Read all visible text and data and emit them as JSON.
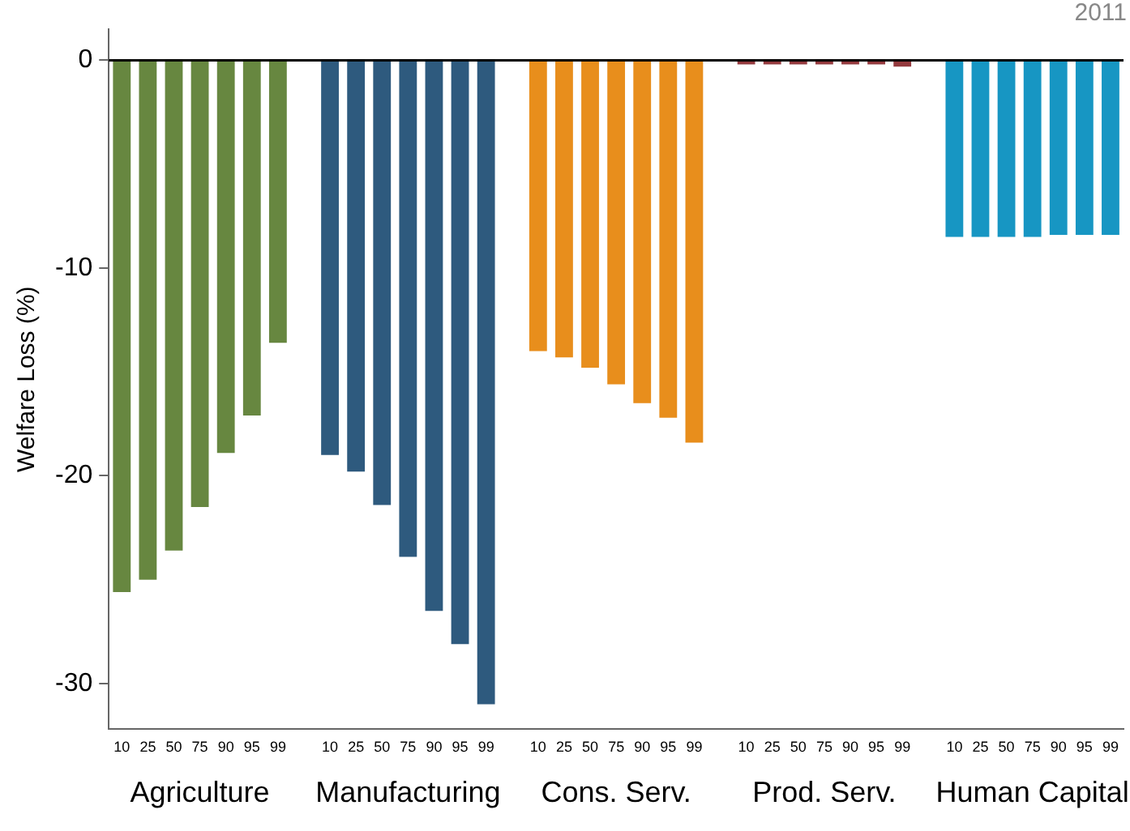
{
  "chart_data": {
    "type": "bar",
    "title": "2011",
    "ylabel": "Welfare Loss (%)",
    "categories": [
      "10",
      "25",
      "50",
      "75",
      "90",
      "95",
      "99",
      null,
      "10",
      "25",
      "50",
      "75",
      "90",
      "95",
      "99",
      null,
      "10",
      "25",
      "50",
      "75",
      "90",
      "95",
      "99",
      null,
      "10",
      "25",
      "50",
      "75",
      "90",
      "95",
      "99",
      null,
      "10",
      "25",
      "50",
      "75",
      "90",
      "95",
      "99"
    ],
    "series": [
      {
        "color": "#678740",
        "values": [
          -25.6,
          -25.0,
          -23.6,
          -21.5,
          -18.9,
          -17.1,
          -13.6,
          null,
          null,
          null,
          null,
          null,
          null,
          null,
          null,
          null,
          null,
          null,
          null,
          null,
          null,
          null,
          null,
          null,
          null,
          null,
          null,
          null,
          null,
          null,
          null,
          null,
          null,
          null,
          null,
          null,
          null,
          null,
          null
        ]
      },
      {
        "color": "#2e5a7e",
        "values": [
          null,
          null,
          null,
          null,
          null,
          null,
          null,
          null,
          -19.0,
          -19.8,
          -21.4,
          -23.9,
          -26.5,
          -28.1,
          -31.0,
          null,
          null,
          null,
          null,
          null,
          null,
          null,
          null,
          null,
          null,
          null,
          null,
          null,
          null,
          null,
          null,
          null,
          null,
          null,
          null,
          null,
          null,
          null,
          null
        ]
      },
      {
        "color": "#e88e1c",
        "values": [
          null,
          null,
          null,
          null,
          null,
          null,
          null,
          null,
          null,
          null,
          null,
          null,
          null,
          null,
          null,
          null,
          -14.0,
          -14.3,
          -14.8,
          -15.6,
          -16.5,
          -17.2,
          -18.4,
          null,
          null,
          null,
          null,
          null,
          null,
          null,
          null,
          null,
          null,
          null,
          null,
          null,
          null,
          null,
          null
        ]
      },
      {
        "color": "#943a3e",
        "values": [
          null,
          null,
          null,
          null,
          null,
          null,
          null,
          null,
          null,
          null,
          null,
          null,
          null,
          null,
          null,
          null,
          null,
          null,
          null,
          null,
          null,
          null,
          null,
          null,
          -0.2,
          -0.2,
          -0.2,
          -0.2,
          -0.2,
          -0.2,
          -0.3,
          null,
          null,
          null,
          null,
          null,
          null,
          null,
          null
        ]
      },
      {
        "color": "#1796c3",
        "values": [
          null,
          null,
          null,
          null,
          null,
          null,
          null,
          null,
          null,
          null,
          null,
          null,
          null,
          null,
          null,
          null,
          null,
          null,
          null,
          null,
          null,
          null,
          null,
          null,
          null,
          null,
          null,
          null,
          null,
          null,
          null,
          null,
          -8.5,
          -8.5,
          -8.5,
          -8.5,
          -8.4,
          -8.4,
          -8.4
        ]
      }
    ],
    "annotations": [
      "Agriculture",
      "Manufacturing",
      "Cons. Serv.",
      "Prod. Serv.",
      "Human Capital"
    ],
    "ylim": [
      -32.2,
      1.5
    ],
    "yticks": [
      0,
      -10,
      -20,
      -30
    ],
    "ref_lines": [
      {
        "axis": "y",
        "value": 0,
        "color": "#000000"
      }
    ],
    "grid": false,
    "legend": false
  }
}
